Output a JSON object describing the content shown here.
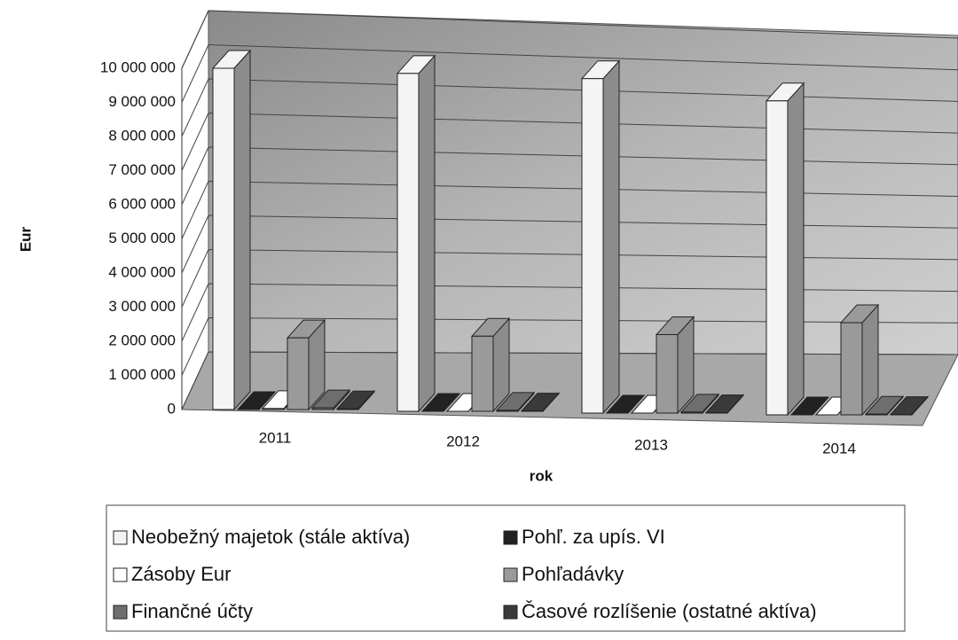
{
  "chart_data": {
    "type": "bar3d",
    "categories": [
      "2011",
      "2012",
      "2013",
      "2014"
    ],
    "x_label": "rok",
    "y_label": "Eur",
    "series": [
      {
        "name": "Neobežný majetok (stále aktíva)",
        "color": "#f4f4f4",
        "values": [
          10000000,
          9900000,
          9800000,
          9200000
        ]
      },
      {
        "name": "Pohľ. za upís. VI",
        "color": "#222222",
        "values": [
          0,
          0,
          0,
          0
        ]
      },
      {
        "name": "Zásoby Eur",
        "color": "#ffffff",
        "values": [
          30000,
          0,
          0,
          0
        ]
      },
      {
        "name": "Pohľadávky",
        "color": "#9a9a9a",
        "values": [
          2100000,
          2200000,
          2300000,
          2700000
        ]
      },
      {
        "name": "Finančné účty",
        "color": "#6e6e6e",
        "values": [
          50000,
          30000,
          30000,
          20000
        ]
      },
      {
        "name": "Časové rozlíšenie (ostatné aktíva)",
        "color": "#3a3a3a",
        "values": [
          20000,
          10000,
          10000,
          10000
        ]
      }
    ],
    "ylim": [
      0,
      10000000
    ],
    "yticks": [
      0,
      {
        "value": 1000000,
        "label": "1 000 000"
      },
      {
        "value": 2000000,
        "label": "2 000 000"
      },
      {
        "value": 3000000,
        "label": "3 000 000"
      },
      {
        "value": 4000000,
        "label": "4 000 000"
      },
      {
        "value": 5000000,
        "label": "5 000 000"
      },
      {
        "value": 6000000,
        "label": "6 000 000"
      },
      {
        "value": 7000000,
        "label": "7 000 000"
      },
      {
        "value": 8000000,
        "label": "8 000 000"
      },
      {
        "value": 9000000,
        "label": "9 000 000"
      },
      {
        "value": 10000000,
        "label": "10 000 000"
      }
    ],
    "grid": true
  }
}
